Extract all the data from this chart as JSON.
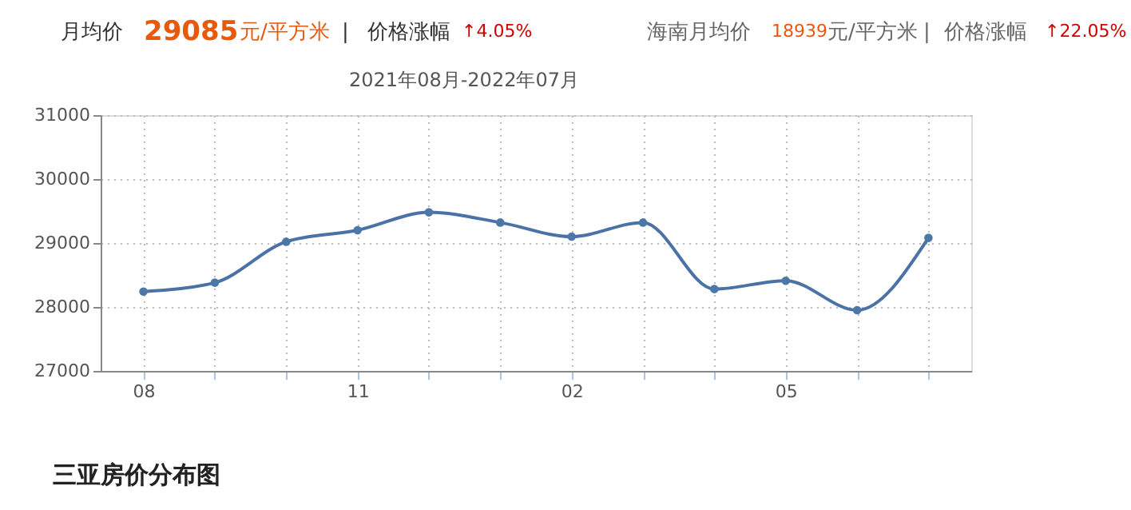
{
  "chart_data": {
    "type": "line",
    "title": "2021年08月-2022年07月",
    "categories": [
      "08",
      null,
      null,
      "11",
      null,
      null,
      "02",
      null,
      null,
      "05",
      null,
      null
    ],
    "series": [
      {
        "color": "#4a72a6",
        "values": [
          28240,
          28380,
          29020,
          29200,
          29480,
          29320,
          29100,
          29320,
          28280,
          28410,
          27950,
          29080
        ]
      }
    ],
    "ylim": [
      27000,
      31000
    ],
    "yticks": [
      27000,
      28000,
      29000,
      30000,
      31000
    ],
    "grid": true,
    "marker": "circle",
    "line_style": "solid",
    "annotations": [
      "月均价",
      "29085",
      "元/平方米",
      "|",
      "价格涨幅",
      "↑4.05%",
      "海南月均价",
      "18939",
      "元/平方米",
      "|",
      "价格涨幅",
      "↑22.05%",
      "三亚房价分布图"
    ]
  }
}
